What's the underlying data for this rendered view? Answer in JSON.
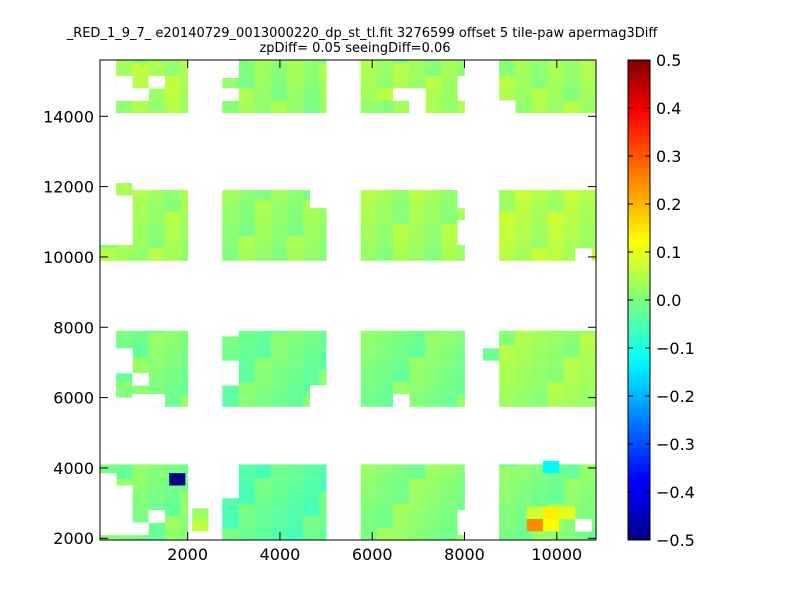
{
  "chart_data": {
    "type": "heatmap",
    "title": "_RED_1_9_7_ e20140729_0013000220_dp_st_tl.fit 3276599 offset 5 tile-paw apermag3Diff",
    "subtitle": "zpDiff= 0.05 seeingDiff=0.06",
    "xlabel": "",
    "ylabel": "",
    "xlim": [
      100,
      10850
    ],
    "ylim": [
      1950,
      15600
    ],
    "x_ticks": [
      "2000",
      "4000",
      "6000",
      "8000",
      "10000"
    ],
    "y_ticks": [
      "2000",
      "4000",
      "6000",
      "8000",
      "10000",
      "12000",
      "14000"
    ],
    "colorbar": {
      "colormap": "jet",
      "range": [
        -0.5,
        0.5
      ],
      "ticks": [
        "0.5",
        "0.4",
        "0.3",
        "0.2",
        "0.1",
        "0.0",
        "−0.1",
        "−0.2",
        "−0.3",
        "−0.4",
        "−0.5"
      ]
    },
    "cell_size": 350,
    "blocks": [
      {
        "x": [
          450,
          2000
        ],
        "y": [
          14100,
          15600
        ],
        "value": 0.04
      },
      {
        "x": [
          2750,
          5000
        ],
        "y": [
          14100,
          15600
        ],
        "value": 0.02
      },
      {
        "x": [
          5750,
          8000
        ],
        "y": [
          14100,
          15600
        ],
        "value": 0.03
      },
      {
        "x": [
          8750,
          10850
        ],
        "y": [
          14100,
          15600
        ],
        "value": 0.03
      },
      {
        "x": [
          100,
          2000
        ],
        "y": [
          9900,
          11900
        ],
        "value": 0.03
      },
      {
        "x": [
          2750,
          5000
        ],
        "y": [
          9900,
          11900
        ],
        "value": 0.02
      },
      {
        "x": [
          5750,
          8000
        ],
        "y": [
          9900,
          11900
        ],
        "value": 0.03
      },
      {
        "x": [
          8750,
          10850
        ],
        "y": [
          9900,
          11900
        ],
        "value": 0.05
      },
      {
        "x": [
          450,
          2000
        ],
        "y": [
          5750,
          7900
        ],
        "value": 0.0
      },
      {
        "x": [
          2750,
          5000
        ],
        "y": [
          5750,
          7900
        ],
        "value": -0.01
      },
      {
        "x": [
          5750,
          8000
        ],
        "y": [
          5750,
          7900
        ],
        "value": 0.0
      },
      {
        "x": [
          8750,
          10850
        ],
        "y": [
          5750,
          7900
        ],
        "value": 0.03
      },
      {
        "x": [
          100,
          2000
        ],
        "y": [
          1950,
          4100
        ],
        "value": 0.0
      },
      {
        "x": [
          2750,
          5000
        ],
        "y": [
          1950,
          4100
        ],
        "value": -0.03
      },
      {
        "x": [
          5750,
          8000
        ],
        "y": [
          1950,
          4100
        ],
        "value": 0.01
      },
      {
        "x": [
          8750,
          10850
        ],
        "y": [
          1950,
          4100
        ],
        "value": 0.0
      }
    ],
    "highlight_cells": [
      {
        "x": 1600,
        "y": 3500,
        "value": -0.5
      },
      {
        "x": 9700,
        "y": 3850,
        "value": -0.13
      },
      {
        "x": 9350,
        "y": 2200,
        "value": 0.24
      },
      {
        "x": 9700,
        "y": 2550,
        "value": 0.14
      },
      {
        "x": 9700,
        "y": 2200,
        "value": 0.12
      },
      {
        "x": 10050,
        "y": 2550,
        "value": 0.1
      },
      {
        "x": 9350,
        "y": 2550,
        "value": 0.08
      },
      {
        "x": 2100,
        "y": 2200,
        "value": 0.06
      },
      {
        "x": 6100,
        "y": 14450,
        "value": 0.06
      }
    ],
    "missing_cells": [
      {
        "x": 2100,
        "y": 15450
      },
      {
        "x": 450,
        "y": 14800
      },
      {
        "x": 450,
        "y": 14450
      },
      {
        "x": 800,
        "y": 14450
      },
      {
        "x": 1150,
        "y": 14800
      },
      {
        "x": 2750,
        "y": 15450
      },
      {
        "x": 2750,
        "y": 15100
      },
      {
        "x": 2750,
        "y": 14450
      },
      {
        "x": 6450,
        "y": 14450
      },
      {
        "x": 6800,
        "y": 14450
      },
      {
        "x": 7850,
        "y": 14800
      },
      {
        "x": 7850,
        "y": 14450
      },
      {
        "x": 6800,
        "y": 14100
      },
      {
        "x": 8750,
        "y": 14100
      },
      {
        "x": 100,
        "y": 11750
      },
      {
        "x": 100,
        "y": 11400
      },
      {
        "x": 450,
        "y": 11400
      },
      {
        "x": 100,
        "y": 11050
      },
      {
        "x": 450,
        "y": 11050
      },
      {
        "x": 100,
        "y": 10700
      },
      {
        "x": 450,
        "y": 10700
      },
      {
        "x": 100,
        "y": 10350
      },
      {
        "x": 450,
        "y": 10350
      },
      {
        "x": 4650,
        "y": 11750
      },
      {
        "x": 4650,
        "y": 11400
      },
      {
        "x": 5000,
        "y": 11750
      },
      {
        "x": 5000,
        "y": 11400
      },
      {
        "x": 7850,
        "y": 11750
      },
      {
        "x": 7850,
        "y": 11400
      },
      {
        "x": 7850,
        "y": 10700
      },
      {
        "x": 7850,
        "y": 10350
      },
      {
        "x": 10400,
        "y": 9900
      },
      {
        "x": 450,
        "y": 7050
      },
      {
        "x": 450,
        "y": 6700
      },
      {
        "x": 800,
        "y": 6350
      },
      {
        "x": 450,
        "y": 5750
      },
      {
        "x": 800,
        "y": 5750
      },
      {
        "x": 1150,
        "y": 5750
      },
      {
        "x": 2750,
        "y": 7750
      },
      {
        "x": 2750,
        "y": 6700
      },
      {
        "x": 2750,
        "y": 6350
      },
      {
        "x": 4650,
        "y": 5750
      },
      {
        "x": 4650,
        "y": 6000
      },
      {
        "x": 5000,
        "y": 6000
      },
      {
        "x": 5000,
        "y": 7050
      },
      {
        "x": 6450,
        "y": 5750
      },
      {
        "x": 100,
        "y": 3500
      },
      {
        "x": 100,
        "y": 3150
      },
      {
        "x": 100,
        "y": 2800
      },
      {
        "x": 100,
        "y": 2450
      },
      {
        "x": 100,
        "y": 2100
      },
      {
        "x": 450,
        "y": 3150
      },
      {
        "x": 450,
        "y": 2800
      },
      {
        "x": 450,
        "y": 2450
      },
      {
        "x": 450,
        "y": 2100
      },
      {
        "x": 800,
        "y": 2100
      },
      {
        "x": 1150,
        "y": 2450
      },
      {
        "x": 2750,
        "y": 3150
      },
      {
        "x": 2750,
        "y": 3500
      },
      {
        "x": 2750,
        "y": 3850
      },
      {
        "x": 2750,
        "y": 4100
      },
      {
        "x": 7850,
        "y": 2450
      },
      {
        "x": 7850,
        "y": 2100
      },
      {
        "x": 10400,
        "y": 2200
      }
    ],
    "extra_cells": [
      {
        "x": 2100,
        "y": 2200,
        "value": 0.06
      },
      {
        "x": 2100,
        "y": 2500,
        "value": 0.03
      },
      {
        "x": 450,
        "y": 6000,
        "value": 0.0
      },
      {
        "x": 8400,
        "y": 7050,
        "value": -0.02
      },
      {
        "x": 5750,
        "y": 14100,
        "value": 0.02
      },
      {
        "x": 450,
        "y": 11750,
        "value": 0.04
      }
    ]
  }
}
